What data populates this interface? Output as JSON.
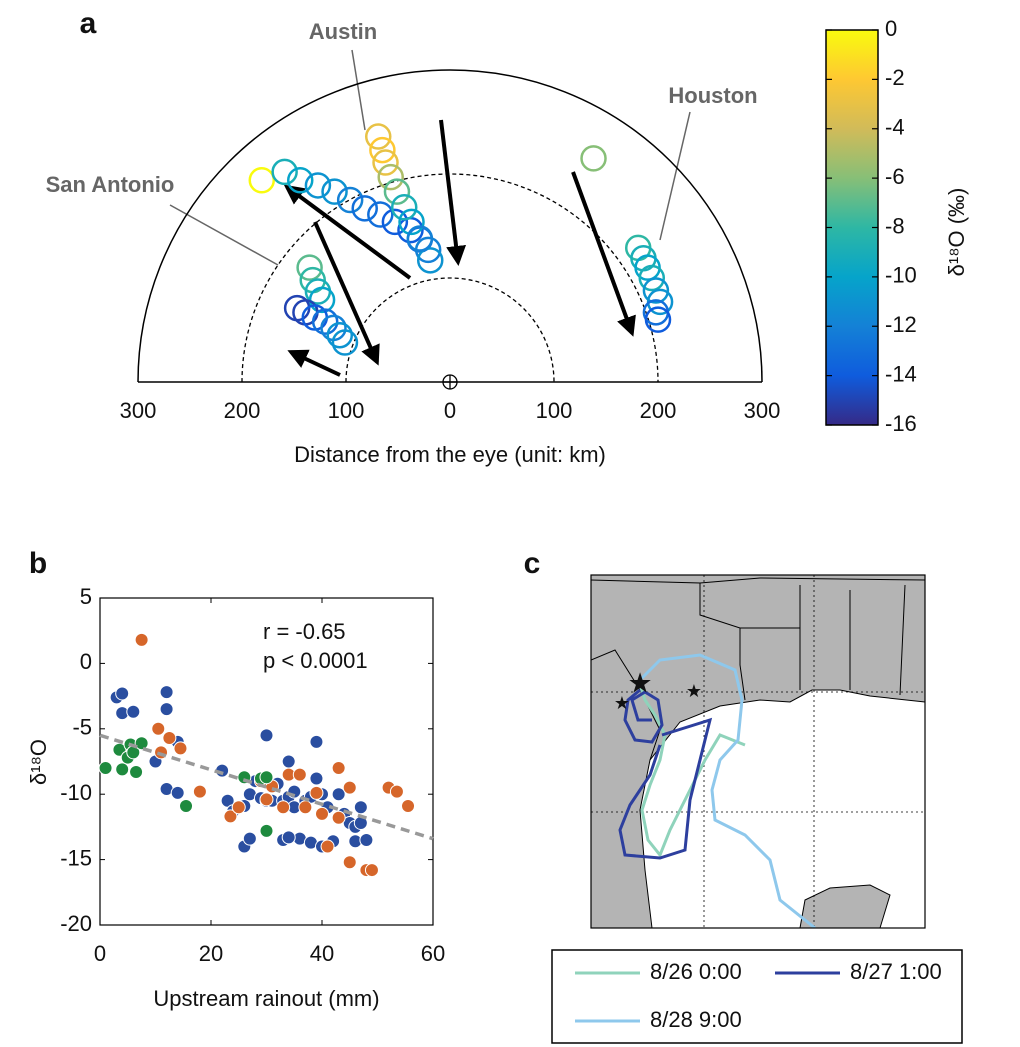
{
  "chart_data": [
    {
      "type": "polar_scatter",
      "panel_label": "a",
      "x_label": "Distance from the eye (unit: km)",
      "xlim": [
        -300,
        300
      ],
      "xticks": [
        {
          "value": -300,
          "label": "300"
        },
        {
          "value": -200,
          "label": "200"
        },
        {
          "value": -100,
          "label": "100"
        },
        0,
        100,
        200,
        300
      ],
      "annotations": [
        "Austin",
        "Houston",
        "San Antonio"
      ],
      "x": [
        -135,
        -132,
        -127,
        -123,
        -147,
        -139,
        -130,
        -120,
        -112,
        -106,
        -101,
        -181,
        -159,
        -144,
        -127,
        -111,
        -96,
        -82,
        -67,
        -53,
        -38,
        -29,
        -21,
        -19,
        -69,
        -65,
        -62,
        -57,
        -51,
        -44,
        -37,
        -29,
        138,
        181,
        186,
        190,
        194,
        198,
        202,
        198,
        200
      ],
      "y": [
        110,
        98,
        87,
        79,
        71,
        67,
        62,
        58,
        52,
        45,
        38,
        194,
        202,
        194,
        189,
        183,
        175,
        167,
        161,
        154,
        146,
        137,
        127,
        117,
        236,
        223,
        211,
        197,
        183,
        168,
        154,
        138,
        215,
        129,
        119,
        110,
        100,
        88,
        77,
        67,
        60
      ],
      "values": [
        -7,
        -8,
        -9,
        -10,
        -15,
        -15,
        -14,
        -13,
        -12,
        -11,
        -11,
        0,
        -9,
        -10,
        -11,
        -11,
        -12,
        -13,
        -13,
        -14,
        -14,
        -13,
        -12,
        -11,
        -3,
        -2,
        -3,
        -5,
        -7,
        -9,
        -10,
        -12,
        -6,
        -8,
        -9,
        -10,
        -9,
        -11,
        -11,
        -13,
        -14
      ],
      "colorbar": {
        "label": "δ¹⁸O (‰)",
        "lim": [
          -16,
          0
        ],
        "ticks": [
          0,
          -2,
          -4,
          -6,
          -8,
          -10,
          -12,
          -14,
          -16
        ],
        "colormap": [
          "#352a87",
          "#0f5cdd",
          "#1481d6",
          "#06a4ca",
          "#2eb7a4",
          "#87bf77",
          "#d1bb59",
          "#fec832",
          "#f9fb0e"
        ]
      }
    },
    {
      "type": "scatter",
      "panel_label": "b",
      "x_label": "Upstream rainout (mm)",
      "y_label": "δ¹⁸O",
      "xlim": [
        0,
        60
      ],
      "xticks": [
        0,
        20,
        40,
        60
      ],
      "ylim": [
        -20,
        5
      ],
      "yticks": [
        -20,
        -15,
        -10,
        -5,
        0,
        5
      ],
      "annotations": [
        "r = -0.65",
        "p < 0.0001"
      ],
      "trend": {
        "x": [
          0,
          60
        ],
        "y": [
          -5.5,
          -13.4
        ],
        "color": "#999999"
      },
      "series": [
        {
          "color": "#2a4ea0",
          "x": [
            3,
            4,
            4,
            6,
            12,
            12,
            10,
            12,
            14,
            14,
            22,
            23,
            24,
            25,
            26,
            27,
            28,
            29,
            26,
            27,
            30,
            30,
            31,
            32,
            33,
            33,
            34,
            34,
            35,
            35,
            36,
            37,
            38,
            38,
            39,
            39,
            40,
            40,
            41,
            42,
            43,
            44,
            45,
            46,
            46,
            47,
            47,
            48,
            34
          ],
          "y": [
            -2.6,
            -2.3,
            -3.8,
            -3.7,
            -2.2,
            -3.5,
            -7.5,
            -9.6,
            -9.9,
            -6,
            -8.2,
            -10.5,
            -11.3,
            -11,
            -10.9,
            -10,
            -9,
            -10.3,
            -14,
            -13.4,
            -5.5,
            -10.5,
            -10.5,
            -9.2,
            -10.5,
            -13.5,
            -7.5,
            -10.2,
            -9.8,
            -11,
            -13.4,
            -10.5,
            -10.2,
            -13.7,
            -6,
            -8.8,
            -14,
            -10,
            -11,
            -13.6,
            -10,
            -11.5,
            -12.2,
            -12.5,
            -13.6,
            -11,
            -12.2,
            -13.5,
            -13.3
          ]
        },
        {
          "color": "#d6662a",
          "x": [
            7.5,
            10.5,
            11,
            12.5,
            14.5,
            18,
            23.5,
            25,
            30,
            31,
            33,
            34,
            36,
            37,
            39,
            40,
            41,
            43,
            43,
            45,
            45,
            48,
            49,
            52,
            53.5,
            55.5,
            29
          ],
          "y": [
            1.8,
            -5,
            -6.8,
            -5.7,
            -6.5,
            -9.8,
            -11.7,
            -11,
            -10.4,
            -9.4,
            -11,
            -8.5,
            -8.5,
            -11,
            -9.9,
            -11.5,
            -14,
            -11.8,
            -8,
            -15.2,
            -9.5,
            -15.8,
            -15.8,
            -9.5,
            -9.8,
            -10.9,
            -9
          ]
        },
        {
          "color": "#1e8a3e",
          "x": [
            1,
            3.5,
            4,
            5,
            5.5,
            6,
            6.5,
            7.5,
            15.5,
            26,
            29,
            30,
            30
          ],
          "y": [
            -8,
            -6.6,
            -8.1,
            -7.2,
            -6.2,
            -6.8,
            -8.3,
            -6.1,
            -10.9,
            -8.7,
            -8.8,
            -8.7,
            -12.8
          ]
        }
      ]
    },
    {
      "type": "map",
      "panel_label": "c",
      "series": [
        {
          "name": "8/26 0:00",
          "color": "#8fd3bb"
        },
        {
          "name": "8/27 1:00",
          "color": "#2d3f9e"
        },
        {
          "name": "8/28 9:00",
          "color": "#8ec8ec"
        }
      ]
    }
  ]
}
